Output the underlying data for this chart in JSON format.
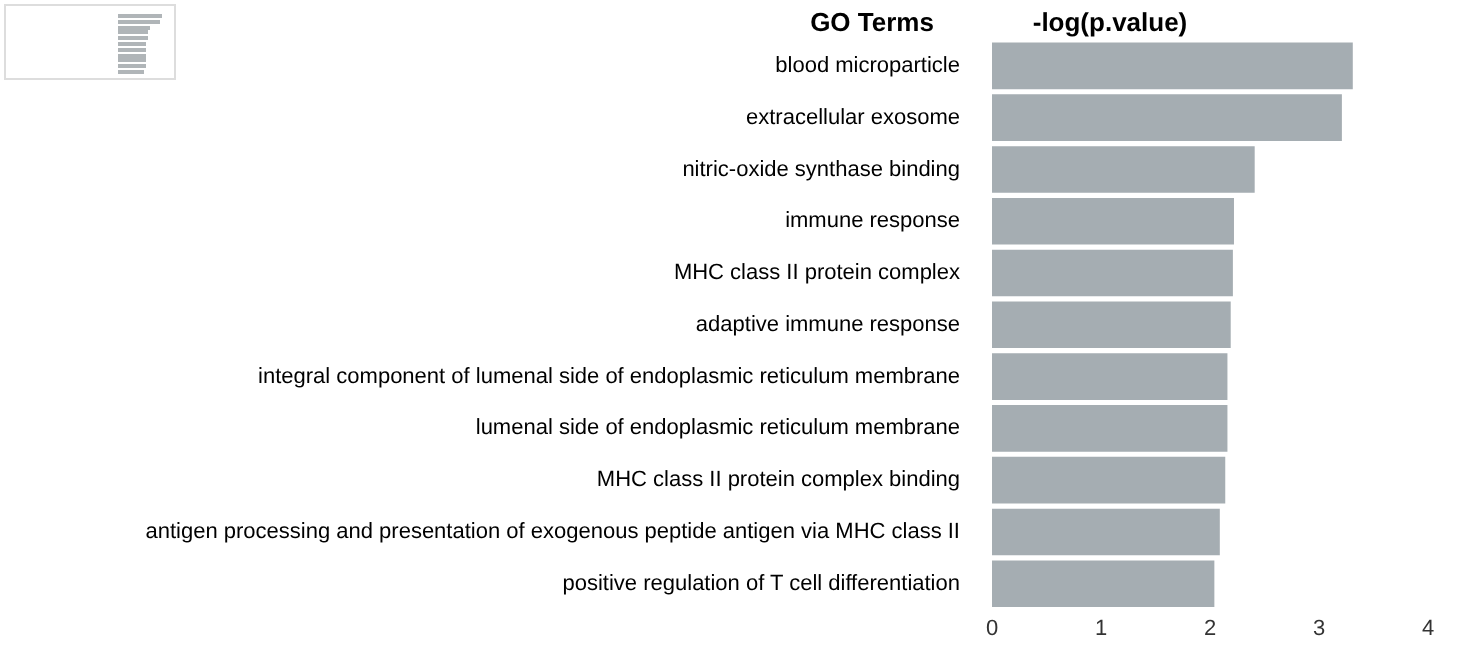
{
  "chart_data": {
    "type": "bar",
    "orientation": "horizontal",
    "title": "-log(p.value)",
    "ylabel": "GO Terms",
    "categories": [
      "blood microparticle",
      "extracellular exosome",
      "nitric-oxide synthase binding",
      "immune response",
      "MHC class II protein complex",
      "adaptive immune response",
      "integral component of lumenal side of endoplasmic reticulum membrane",
      "lumenal side of endoplasmic reticulum membrane",
      "MHC class II protein complex binding",
      "antigen processing and presentation of exogenous peptide antigen via MHC class II",
      "positive regulation of T cell differentiation"
    ],
    "values": [
      3.31,
      3.21,
      2.41,
      2.22,
      2.21,
      2.19,
      2.16,
      2.16,
      2.14,
      2.09,
      2.04
    ],
    "color": "#a5adb2",
    "xlim": [
      0,
      4
    ],
    "xticks": [
      0,
      1,
      2,
      3,
      4
    ],
    "grid": false,
    "legend": false
  }
}
